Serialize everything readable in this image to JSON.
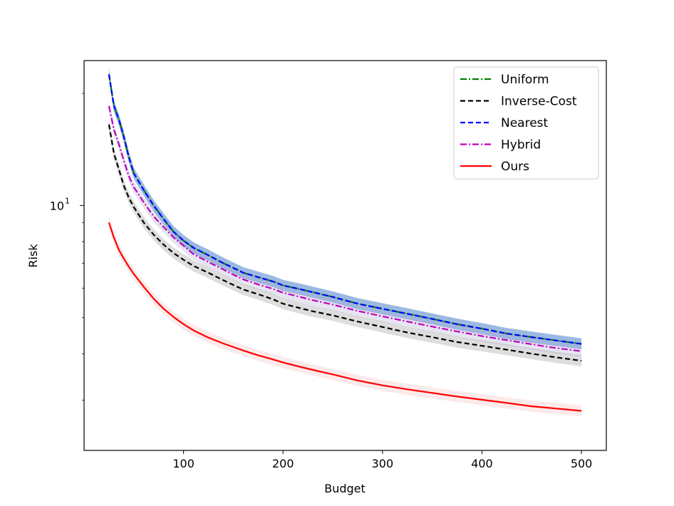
{
  "chart_data": {
    "type": "line",
    "title": "",
    "xlabel": "Budget",
    "ylabel": "Risk",
    "xscale": "linear",
    "yscale": "log",
    "xlim": [
      0,
      525
    ],
    "ylim": [
      2.2,
      24.5
    ],
    "xticks": [
      100,
      200,
      300,
      400,
      500
    ],
    "xtick_labels": [
      "100",
      "200",
      "300",
      "400",
      "500"
    ],
    "ytick_major": [
      {
        "value": 10,
        "base": "10",
        "exp": "1"
      }
    ],
    "ytick_minor": [
      3,
      4,
      5,
      6,
      7,
      8,
      9,
      20
    ],
    "grid": false,
    "legend_position": "top-right",
    "x": [
      25,
      30,
      35,
      40,
      45,
      50,
      60,
      70,
      80,
      90,
      100,
      110,
      125,
      140,
      150,
      160,
      175,
      190,
      200,
      215,
      230,
      250,
      275,
      300,
      325,
      350,
      375,
      400,
      425,
      450,
      475,
      500
    ],
    "series": [
      {
        "name": "Uniform",
        "color": "#008000",
        "style": "dashdot",
        "shade": "#3a78c8",
        "values": [
          22.5,
          18.5,
          17.0,
          15.3,
          13.5,
          12.2,
          11.0,
          10.0,
          9.2,
          8.5,
          8.05,
          7.7,
          7.35,
          7.0,
          6.8,
          6.6,
          6.42,
          6.25,
          6.1,
          5.98,
          5.85,
          5.68,
          5.45,
          5.28,
          5.12,
          4.96,
          4.8,
          4.67,
          4.53,
          4.43,
          4.34,
          4.25
        ]
      },
      {
        "name": "Inverse-Cost",
        "color": "#000000",
        "style": "dashed",
        "shade": "#909090",
        "values": [
          16.5,
          13.8,
          12.5,
          11.3,
          10.5,
          9.9,
          9.0,
          8.35,
          7.85,
          7.45,
          7.15,
          6.88,
          6.6,
          6.3,
          6.12,
          5.95,
          5.78,
          5.6,
          5.45,
          5.32,
          5.2,
          5.07,
          4.88,
          4.72,
          4.56,
          4.43,
          4.3,
          4.2,
          4.1,
          4.0,
          3.91,
          3.83
        ]
      },
      {
        "name": "Nearest",
        "color": "#0000ff",
        "style": "dashed",
        "shade": "#3a78c8",
        "values": [
          22.5,
          18.5,
          17.0,
          15.3,
          13.5,
          12.2,
          11.0,
          10.0,
          9.2,
          8.5,
          8.05,
          7.7,
          7.35,
          7.0,
          6.8,
          6.6,
          6.42,
          6.25,
          6.1,
          5.98,
          5.85,
          5.68,
          5.45,
          5.28,
          5.12,
          4.96,
          4.8,
          4.67,
          4.53,
          4.43,
          4.34,
          4.25
        ]
      },
      {
        "name": "Hybrid",
        "color": "#bf00bf",
        "style": "dashdot",
        "shade": "#b0a8d0",
        "values": [
          18.5,
          16.0,
          14.6,
          13.2,
          12.0,
          11.2,
          10.2,
          9.35,
          8.75,
          8.2,
          7.8,
          7.4,
          7.05,
          6.73,
          6.52,
          6.33,
          6.14,
          5.97,
          5.83,
          5.7,
          5.57,
          5.42,
          5.21,
          5.04,
          4.88,
          4.73,
          4.59,
          4.46,
          4.35,
          4.24,
          4.14,
          4.06
        ]
      },
      {
        "name": "Ours",
        "color": "#ff0000",
        "style": "solid",
        "shade": "#f4b8b8",
        "values": [
          9.0,
          8.2,
          7.6,
          7.2,
          6.85,
          6.55,
          6.05,
          5.62,
          5.28,
          5.02,
          4.8,
          4.62,
          4.42,
          4.26,
          4.17,
          4.08,
          3.96,
          3.86,
          3.79,
          3.7,
          3.62,
          3.52,
          3.39,
          3.29,
          3.21,
          3.14,
          3.07,
          3.01,
          2.95,
          2.89,
          2.85,
          2.81
        ]
      }
    ]
  }
}
